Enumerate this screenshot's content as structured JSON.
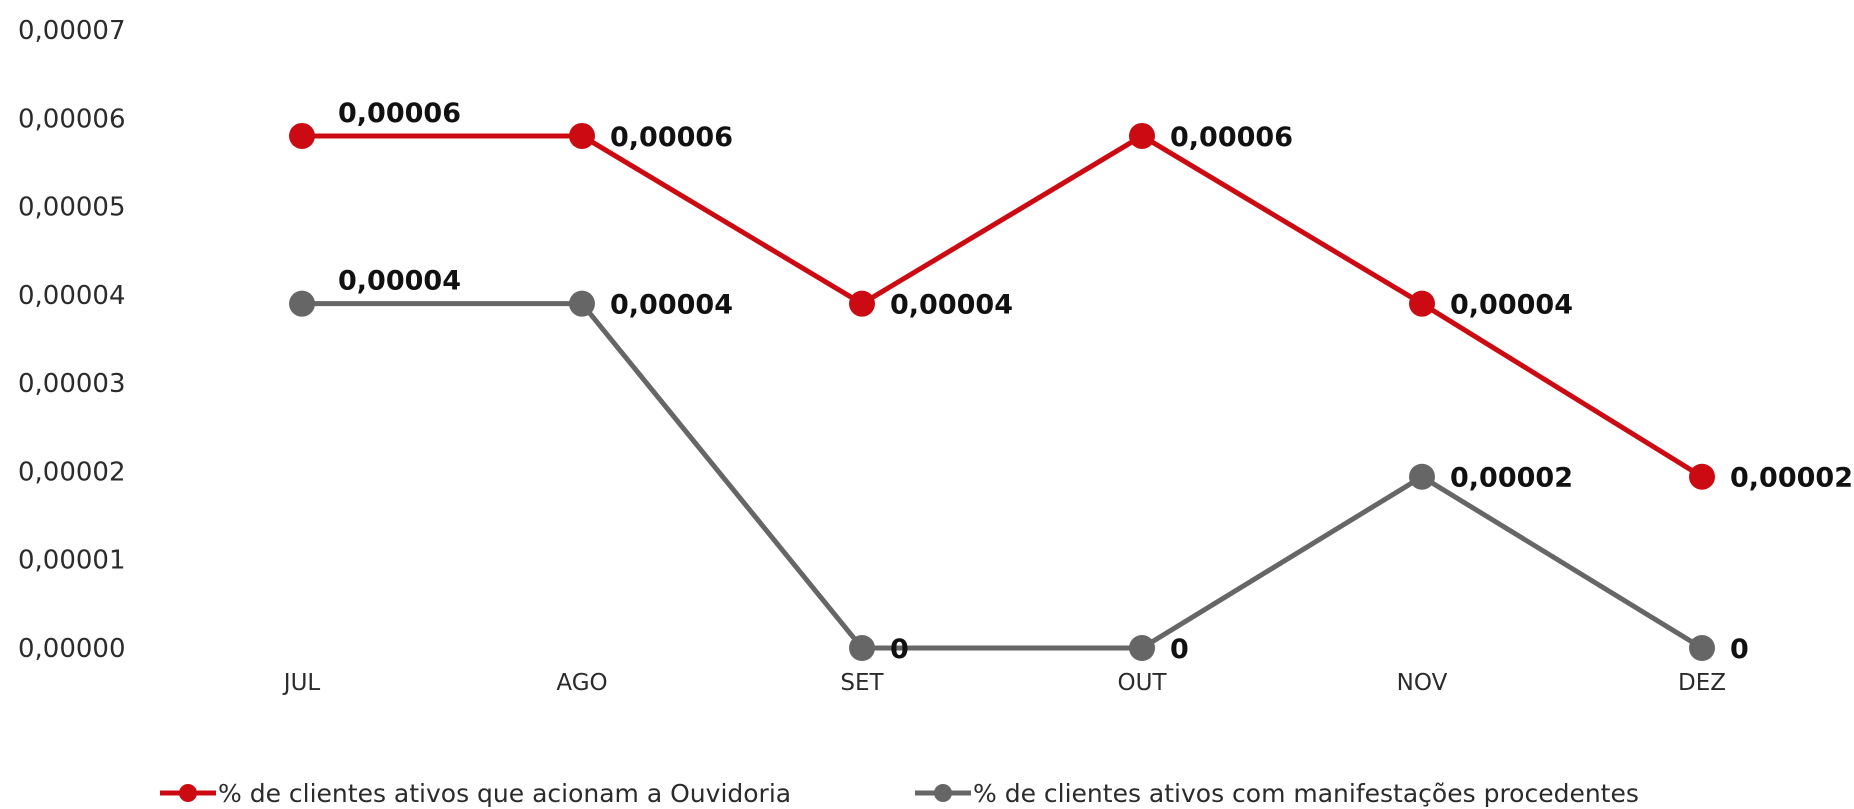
{
  "chart_data": {
    "type": "line",
    "categories": [
      "JUL",
      "AGO",
      "SET",
      "OUT",
      "NOV",
      "DEZ"
    ],
    "ylim": [
      0,
      7e-05
    ],
    "yticks": [
      "0,00000",
      "0,00001",
      "0,00002",
      "0,00003",
      "0,00004",
      "0,00005",
      "0,00006",
      "0,00007"
    ],
    "grid": false,
    "legend_position": "bottom",
    "series": [
      {
        "name": "% de clientes ativos que acionam a Ouvidoria",
        "color": "#cc0a12",
        "values": [
          5.8e-05,
          5.8e-05,
          3.9e-05,
          5.8e-05,
          3.9e-05,
          1.94e-05
        ],
        "labels": [
          "0,00006",
          "0,00006",
          "0,00004",
          "0,00006",
          "0,00004",
          "0,00002"
        ]
      },
      {
        "name": "% de clientes ativos com manifestações procedentes",
        "color": "#666666",
        "values": [
          3.9e-05,
          3.9e-05,
          0,
          0,
          1.94e-05,
          0
        ],
        "labels": [
          "0,00004",
          "0,00004",
          "0",
          "0",
          "0,00002",
          "0"
        ]
      }
    ]
  }
}
